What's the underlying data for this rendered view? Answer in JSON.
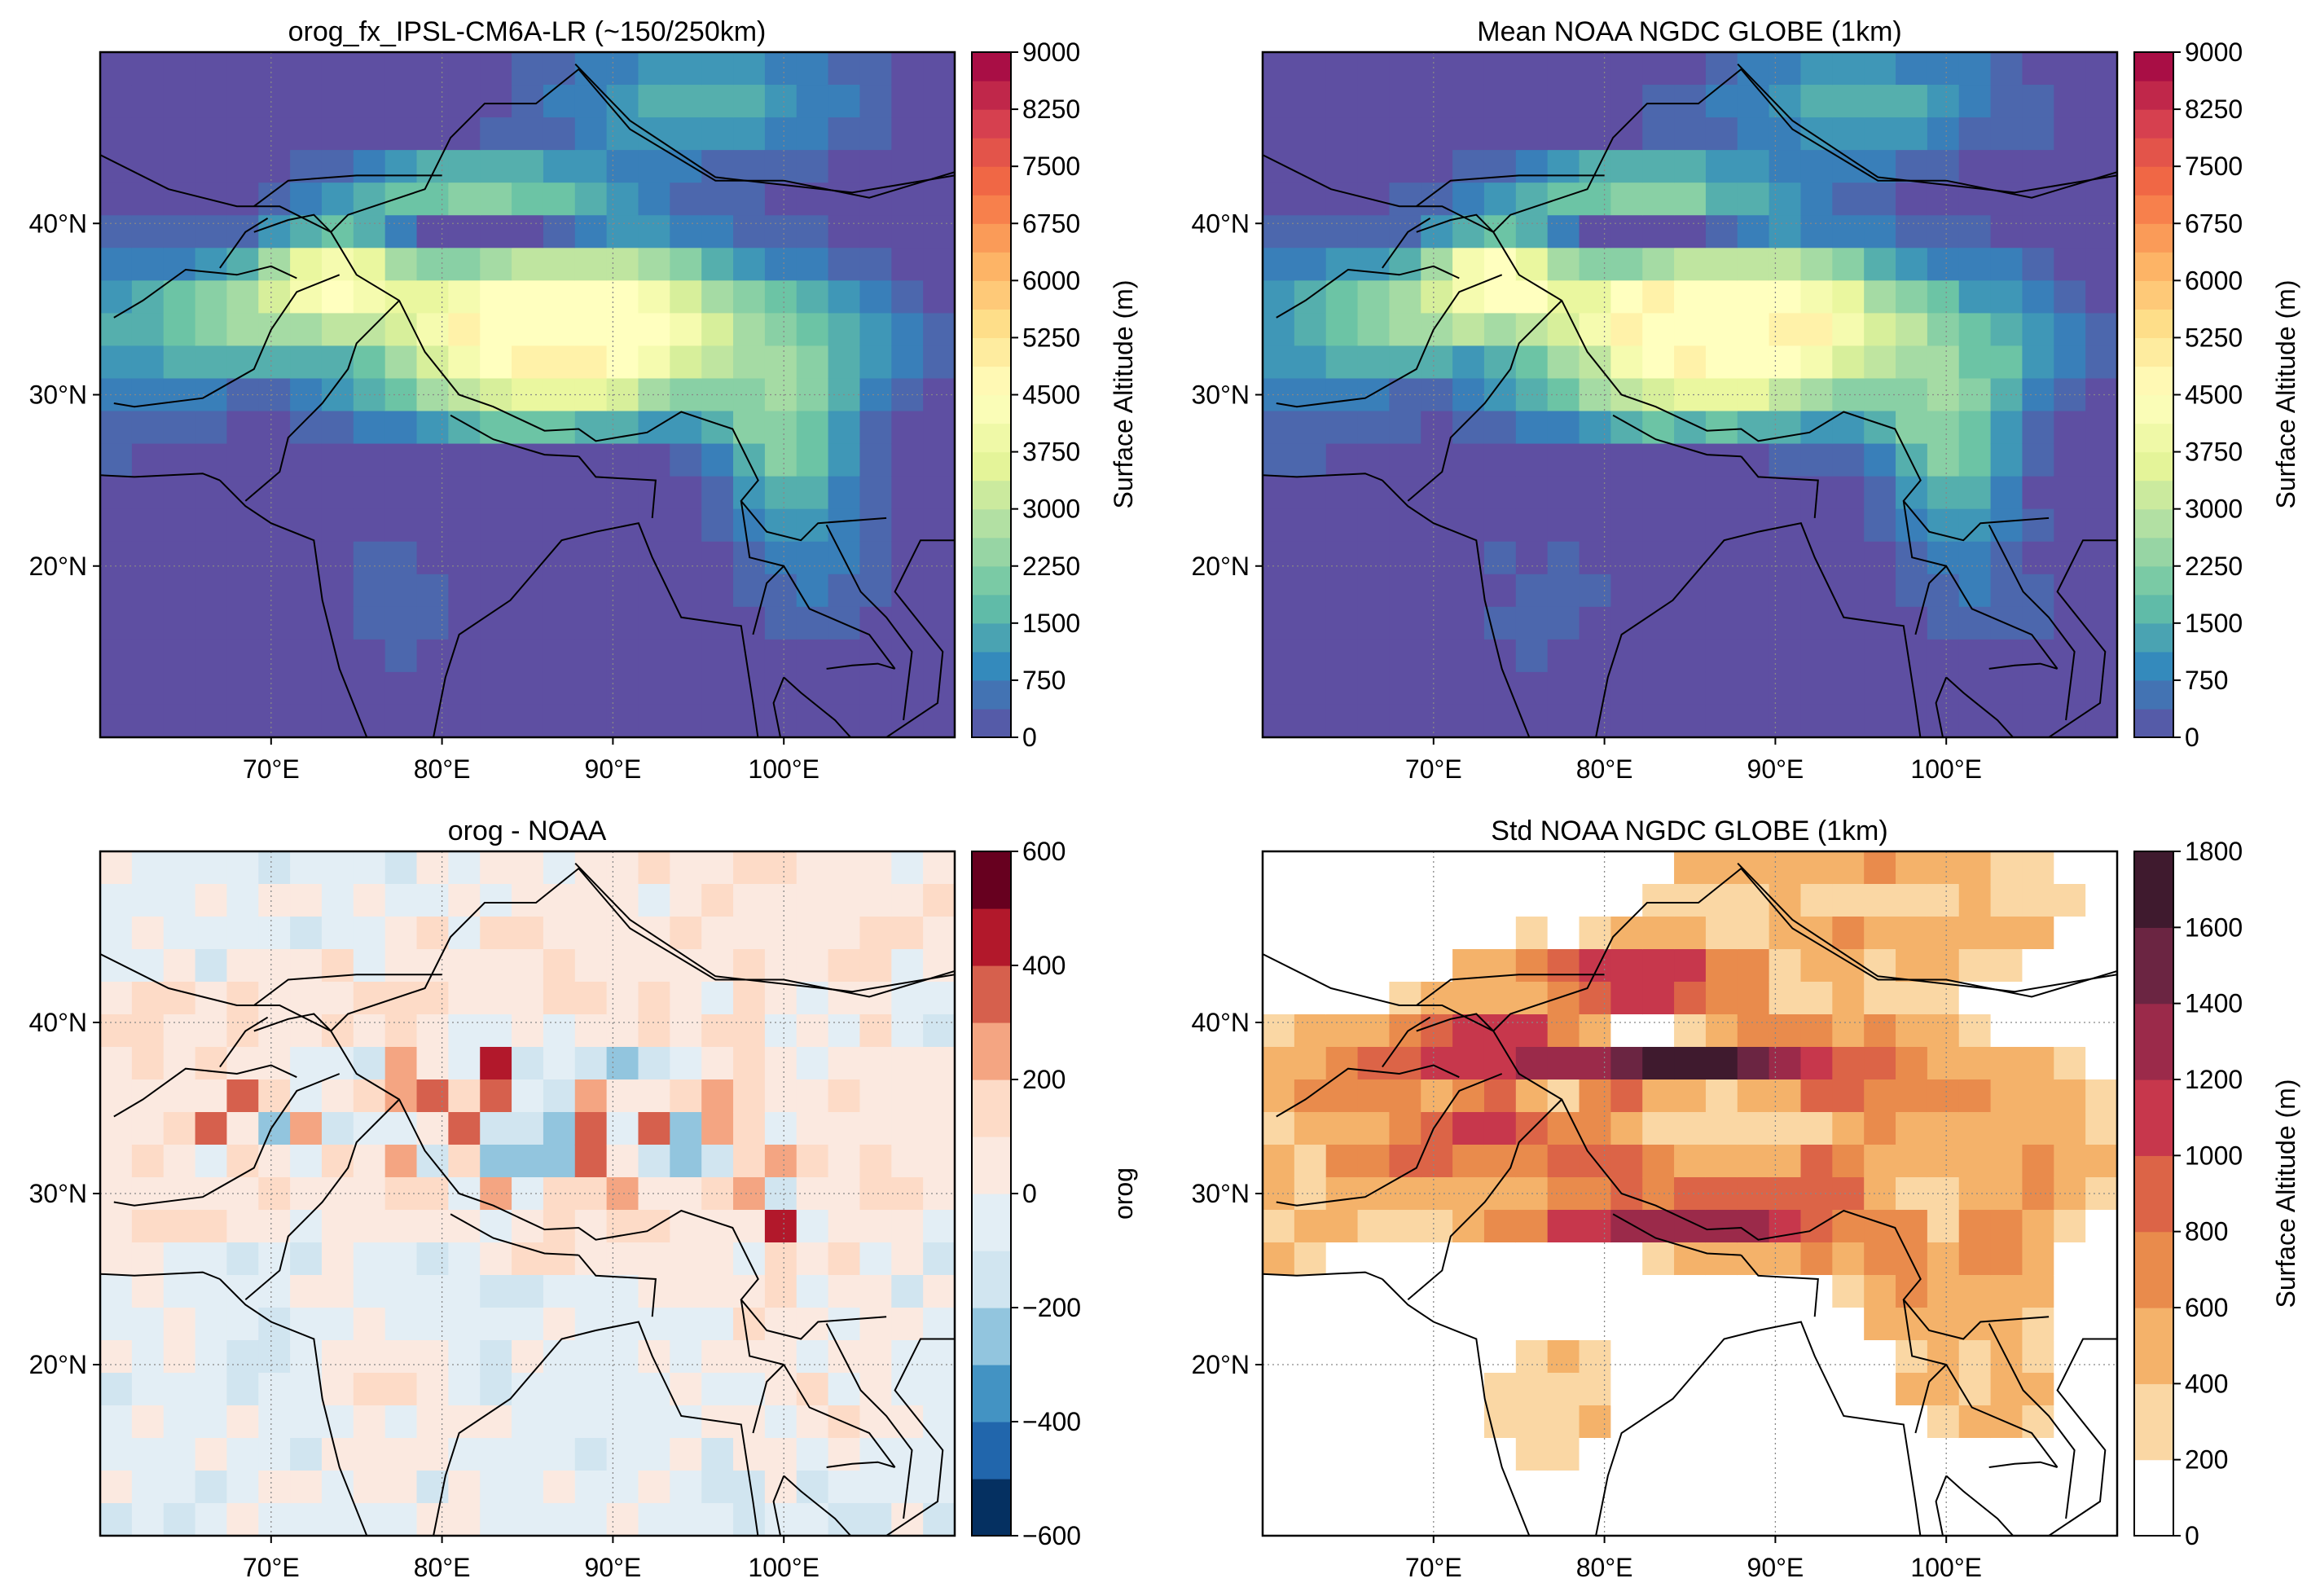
{
  "figure": {
    "panels": [
      {
        "id": "tl",
        "title": "orog_fx_IPSL-CM6A-LR (~150/250km)",
        "kind": "orography",
        "colorbar": {
          "label": "Surface Altitude (m)",
          "ticks": [
            "0",
            "750",
            "1500",
            "2250",
            "3000",
            "3750",
            "4500",
            "5250",
            "6000",
            "6750",
            "7500",
            "8250",
            "9000"
          ],
          "palette": [
            "#5e4fa2",
            "#3288bd",
            "#66c2a5",
            "#abdda4",
            "#e6f598",
            "#ffffbf",
            "#fee08b",
            "#fdae61",
            "#f46d43",
            "#d53e4f",
            "#9e0142"
          ]
        }
      },
      {
        "id": "tr",
        "title": "Mean NOAA NGDC GLOBE (1km)",
        "kind": "orography",
        "colorbar": {
          "label": "Surface Altitude (m)",
          "ticks": [
            "0",
            "750",
            "1500",
            "2250",
            "3000",
            "3750",
            "4500",
            "5250",
            "6000",
            "6750",
            "7500",
            "8250",
            "9000"
          ],
          "palette": [
            "#5e4fa2",
            "#3288bd",
            "#66c2a5",
            "#abdda4",
            "#e6f598",
            "#ffffbf",
            "#fee08b",
            "#fdae61",
            "#f46d43",
            "#d53e4f",
            "#9e0142"
          ]
        }
      },
      {
        "id": "bl",
        "title": "orog - NOAA",
        "kind": "difference",
        "colorbar": {
          "label": "orog",
          "ticks": [
            "600",
            "400",
            "200",
            "0",
            "−200",
            "−400",
            "−600"
          ],
          "palette": [
            "#67001f",
            "#b2182b",
            "#d6604d",
            "#f4a582",
            "#fddbc7",
            "#fbe9e0",
            "#e3eef5",
            "#d1e5f0",
            "#92c5de",
            "#4393c3",
            "#2166ac",
            "#053061"
          ]
        }
      },
      {
        "id": "br",
        "title": "Std NOAA NGDC GLOBE (1km)",
        "kind": "stddev",
        "colorbar": {
          "label": "Surface Altitude (m)",
          "ticks": [
            "1800",
            "1600",
            "1400",
            "1200",
            "1000",
            "800",
            "600",
            "400",
            "200",
            "0"
          ],
          "palette": [
            "#3f1a2e",
            "#6b2542",
            "#9b2a4a",
            "#c7374c",
            "#dc6447",
            "#e98b4c",
            "#f4b26a",
            "#fad7a4",
            "#ffffff"
          ]
        }
      }
    ],
    "axes": {
      "x_ticks": [
        "70°E",
        "80°E",
        "90°E",
        "100°E"
      ],
      "y_ticks": [
        "40°N",
        "30°N",
        "20°N"
      ],
      "lon_range": [
        60,
        110
      ],
      "lat_range": [
        10,
        50
      ],
      "grid": "dotted"
    }
  }
}
